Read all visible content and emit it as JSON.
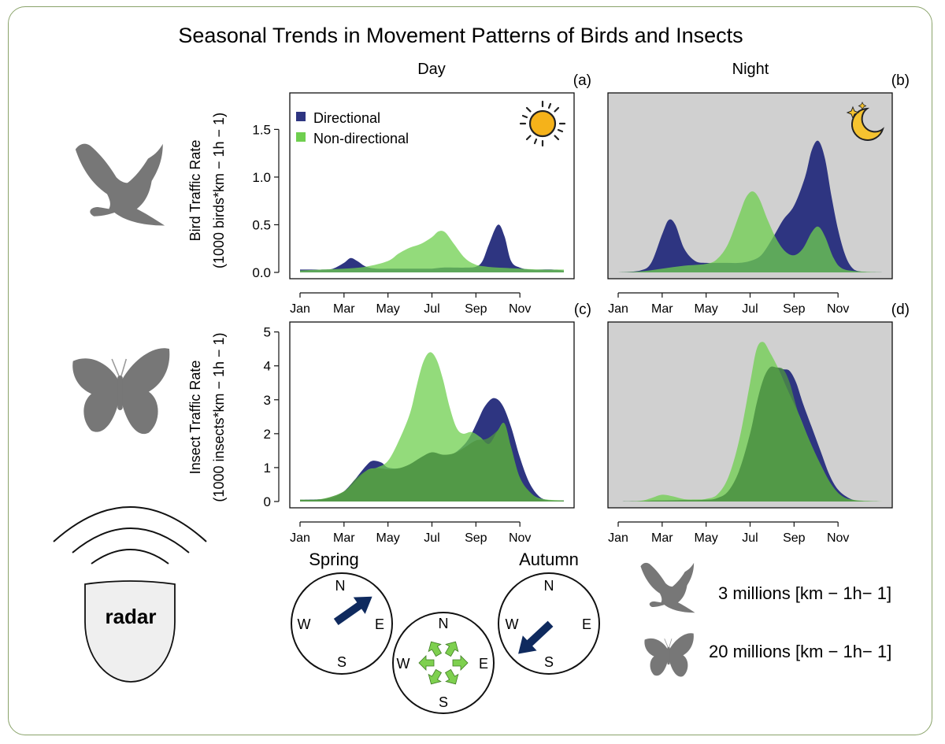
{
  "figure": {
    "title": "Seasonal Trends in Movement Patterns of Birds and Insects",
    "col_day": "Day",
    "col_night": "Night",
    "bird_ylabel_line1": "Bird Traffic Rate",
    "bird_ylabel_line2": "(1000 birds*km − 1h − 1)",
    "insect_ylabel_line1": "Insect Traffic Rate",
    "insect_ylabel_line2": "(1000 insects*km − 1h − 1)",
    "legend_directional": "Directional",
    "legend_nondirectional": "Non-directional",
    "radar_label": "radar",
    "spring_label": "Spring",
    "autumn_label": "Autumn",
    "compass": {
      "n": "N",
      "e": "E",
      "s": "S",
      "w": "W"
    },
    "scale_birds": "3 millions [km − 1h− 1]",
    "scale_insects": "20 millions [km − 1h− 1]",
    "icons": [
      "bird-icon",
      "butterfly-icon",
      "radar-icon",
      "sun-icon",
      "moon-stars-icon"
    ]
  },
  "colors": {
    "directional": "#2e3581",
    "nondirectional": "#6fcf4f",
    "night_bg": "#d0d0d0",
    "silhouette": "#7a7a7a",
    "frame": "#8aa36a"
  },
  "chart_data": [
    {
      "id": "a",
      "panel_label": "(a)",
      "type": "area",
      "period": "Day",
      "taxon": "Birds",
      "x_ticks": [
        "Jan",
        "Mar",
        "May",
        "Jul",
        "Sep",
        "Nov"
      ],
      "y_ticks": [
        "0.0",
        "0.5",
        "1.0",
        "1.5"
      ],
      "ylim": [
        0,
        1.85
      ],
      "series": [
        {
          "name": "Directional",
          "x": [
            0,
            0.5,
            1,
            1.5,
            2,
            2.3,
            2.6,
            3,
            3.5,
            4,
            4.5,
            5,
            5.5,
            6,
            6.5,
            7,
            7.5,
            8,
            8.3,
            8.6,
            9,
            9.3,
            9.6,
            10,
            10.5,
            11,
            11.5,
            12
          ],
          "values": [
            0.03,
            0.03,
            0.03,
            0.04,
            0.1,
            0.15,
            0.12,
            0.06,
            0.04,
            0.04,
            0.04,
            0.04,
            0.04,
            0.04,
            0.05,
            0.05,
            0.05,
            0.06,
            0.12,
            0.3,
            0.5,
            0.38,
            0.12,
            0.05,
            0.03,
            0.03,
            0.03,
            0.02
          ]
        },
        {
          "name": "Non-directional",
          "x": [
            0,
            1,
            2,
            3,
            4,
            4.5,
            5,
            5.5,
            6,
            6.3,
            6.6,
            7,
            7.5,
            8,
            8.5,
            9,
            10,
            11,
            12
          ],
          "values": [
            0.02,
            0.03,
            0.04,
            0.06,
            0.12,
            0.2,
            0.26,
            0.3,
            0.37,
            0.43,
            0.42,
            0.3,
            0.15,
            0.08,
            0.06,
            0.05,
            0.04,
            0.03,
            0.03
          ]
        }
      ]
    },
    {
      "id": "b",
      "panel_label": "(b)",
      "type": "area",
      "period": "Night",
      "taxon": "Birds",
      "x_ticks": [
        "Jan",
        "Mar",
        "May",
        "Jul",
        "Sep",
        "Nov"
      ],
      "y_ticks": [],
      "ylim": [
        0,
        1.85
      ],
      "series": [
        {
          "name": "Directional",
          "x": [
            0,
            1,
            1.5,
            2,
            2.3,
            2.6,
            3,
            3.5,
            4,
            4.5,
            5,
            5.5,
            6,
            6.5,
            7,
            7.5,
            8,
            8.5,
            8.8,
            9.1,
            9.4,
            9.7,
            10,
            10.3,
            10.6,
            11,
            12
          ],
          "values": [
            0.0,
            0.02,
            0.1,
            0.4,
            0.55,
            0.5,
            0.25,
            0.12,
            0.1,
            0.1,
            0.1,
            0.1,
            0.12,
            0.18,
            0.35,
            0.55,
            0.7,
            1.0,
            1.28,
            1.38,
            1.2,
            0.8,
            0.45,
            0.2,
            0.06,
            0.01,
            0.0
          ]
        },
        {
          "name": "Non-directional",
          "x": [
            0,
            1,
            2,
            3,
            4,
            4.5,
            5,
            5.5,
            5.8,
            6.1,
            6.4,
            6.8,
            7.2,
            7.6,
            8,
            8.4,
            8.8,
            9.1,
            9.4,
            9.8,
            10.2,
            11,
            12
          ],
          "values": [
            0.0,
            0.01,
            0.04,
            0.07,
            0.09,
            0.14,
            0.3,
            0.6,
            0.78,
            0.85,
            0.78,
            0.55,
            0.35,
            0.22,
            0.18,
            0.25,
            0.42,
            0.48,
            0.38,
            0.15,
            0.04,
            0.01,
            0.0
          ]
        }
      ]
    },
    {
      "id": "c",
      "panel_label": "(c)",
      "type": "area",
      "period": "Day",
      "taxon": "Insects",
      "x_ticks": [
        "Jan",
        "Mar",
        "May",
        "Jul",
        "Sep",
        "Nov"
      ],
      "y_ticks": [
        "0",
        "1",
        "2",
        "3",
        "4",
        "5"
      ],
      "ylim": [
        0,
        5.2
      ],
      "series": [
        {
          "name": "Directional",
          "x": [
            0,
            1,
            1.5,
            2,
            2.5,
            3,
            3.3,
            3.7,
            4,
            4.5,
            5,
            5.5,
            6,
            6.5,
            7,
            7.5,
            7.8,
            8.1,
            8.4,
            8.8,
            9.2,
            9.6,
            10,
            10.4,
            10.8,
            11.2,
            12
          ],
          "values": [
            0.05,
            0.07,
            0.12,
            0.3,
            0.65,
            1.05,
            1.2,
            1.15,
            1.0,
            0.98,
            1.1,
            1.3,
            1.45,
            1.38,
            1.42,
            1.7,
            2.0,
            2.4,
            2.8,
            3.05,
            2.85,
            2.2,
            1.3,
            0.6,
            0.2,
            0.05,
            0.03
          ]
        },
        {
          "name": "Non-directional",
          "x": [
            0,
            1,
            2,
            3,
            3.5,
            4,
            4.5,
            5,
            5.3,
            5.6,
            5.9,
            6.2,
            6.5,
            6.8,
            7.1,
            7.4,
            7.8,
            8.2,
            8.6,
            9,
            9.3,
            9.6,
            10,
            10.5,
            11,
            12
          ],
          "values": [
            0.05,
            0.08,
            0.3,
            0.9,
            1.0,
            1.2,
            1.8,
            2.6,
            3.4,
            4.1,
            4.4,
            4.2,
            3.6,
            2.8,
            2.2,
            2.0,
            2.05,
            1.9,
            1.7,
            2.1,
            2.3,
            1.6,
            0.7,
            0.25,
            0.08,
            0.03
          ]
        },
        {
          "name": "overlap",
          "x": [
            0,
            1,
            2,
            2.5,
            3,
            3.5,
            4,
            4.5,
            5,
            5.5,
            6,
            6.5,
            7,
            7.5,
            8,
            8.5,
            9,
            9.3,
            9.6,
            10,
            10.5,
            11,
            12
          ],
          "values": [
            0.05,
            0.07,
            0.3,
            0.65,
            0.9,
            0.98,
            0.95,
            0.98,
            1.1,
            1.3,
            1.45,
            1.38,
            1.42,
            1.6,
            1.8,
            1.85,
            2.1,
            2.3,
            1.6,
            0.7,
            0.25,
            0.05,
            0.03
          ]
        }
      ]
    },
    {
      "id": "d",
      "panel_label": "(d)",
      "type": "area",
      "period": "Night",
      "taxon": "Insects",
      "x_ticks": [
        "Jan",
        "Mar",
        "May",
        "Jul",
        "Sep",
        "Nov"
      ],
      "y_ticks": [],
      "ylim": [
        0,
        5.2
      ],
      "series": [
        {
          "name": "Directional",
          "x": [
            0,
            1,
            2,
            3,
            4,
            4.5,
            5,
            5.5,
            6,
            6.3,
            6.6,
            6.9,
            7.2,
            7.5,
            7.8,
            8.1,
            8.4,
            8.8,
            9.2,
            9.6,
            10,
            10.5,
            11,
            12
          ],
          "values": [
            0.0,
            0.01,
            0.03,
            0.04,
            0.05,
            0.1,
            0.3,
            0.9,
            2.0,
            2.9,
            3.6,
            3.95,
            3.95,
            3.9,
            3.85,
            3.5,
            2.9,
            2.2,
            1.5,
            0.8,
            0.35,
            0.1,
            0.02,
            0.0
          ]
        },
        {
          "name": "Non-directional",
          "x": [
            0,
            1,
            1.5,
            2,
            2.5,
            3,
            3.5,
            4,
            4.5,
            5,
            5.5,
            6,
            6.3,
            6.6,
            6.9,
            7.3,
            7.7,
            8.2,
            8.7,
            9.2,
            9.7,
            10.2,
            10.8,
            12
          ],
          "values": [
            0.0,
            0.02,
            0.1,
            0.2,
            0.15,
            0.07,
            0.06,
            0.08,
            0.2,
            0.7,
            1.8,
            3.5,
            4.5,
            4.7,
            4.4,
            3.9,
            3.3,
            2.6,
            1.8,
            1.1,
            0.5,
            0.15,
            0.04,
            0.0
          ]
        },
        {
          "name": "overlap",
          "x": [
            0,
            1,
            1.5,
            2,
            2.5,
            3,
            4,
            4.5,
            5,
            5.5,
            6,
            6.3,
            6.6,
            6.9,
            7.2,
            7.5,
            7.8,
            8.2,
            8.7,
            9.2,
            9.7,
            10.2,
            10.8,
            12
          ],
          "values": [
            0.0,
            0.01,
            0.03,
            0.03,
            0.03,
            0.04,
            0.05,
            0.1,
            0.3,
            0.9,
            2.0,
            2.9,
            3.6,
            3.95,
            3.95,
            3.9,
            3.5,
            2.6,
            1.8,
            1.1,
            0.5,
            0.15,
            0.03,
            0.0
          ]
        }
      ]
    }
  ]
}
